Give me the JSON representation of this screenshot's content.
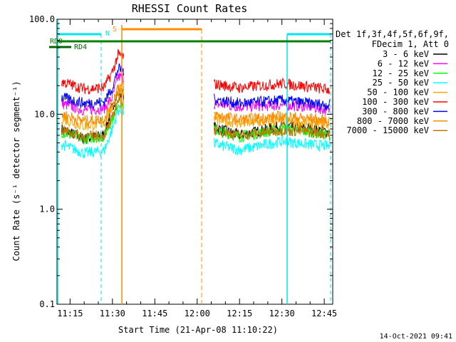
{
  "chart_data": {
    "type": "line",
    "title": "RHESSI Count Rates",
    "xlabel": "Start Time (21-Apr-08 11:10:22)",
    "ylabel": "Count Rate (s⁻¹ detector segment⁻¹)",
    "y_scale": "log",
    "ylim": [
      0.1,
      100.0
    ],
    "xlim": [
      "11:10:22",
      "12:48:00"
    ],
    "x_ticks": [
      "11:15",
      "11:30",
      "11:45",
      "12:00",
      "12:15",
      "12:30",
      "12:45"
    ],
    "y_ticks": [
      "0.1",
      "1.0",
      "10.0",
      "100.0"
    ],
    "legend_header": [
      "Det 1f,3f,4f,5f,6f,9f,",
      "FDecim 1, Att 0"
    ],
    "legend_position": "right",
    "series": [
      {
        "name": "3 - 6 keV",
        "color": "#000000",
        "x": [
          "11:12",
          "11:20",
          "11:27",
          "11:30",
          "11:32",
          "12:05",
          "12:15",
          "12:30",
          "12:40",
          "12:47"
        ],
        "values": [
          7.0,
          5.5,
          6.0,
          12.0,
          17.0,
          7.5,
          6.0,
          7.5,
          7.0,
          6.5
        ]
      },
      {
        "name": "6 - 12 keV",
        "color": "#ff00ff",
        "x": [
          "11:12",
          "11:20",
          "11:27",
          "11:30",
          "11:32",
          "12:05",
          "12:15",
          "12:30",
          "12:40",
          "12:47"
        ],
        "values": [
          13.0,
          11.0,
          11.5,
          15.0,
          25.0,
          13.0,
          12.0,
          12.5,
          12.0,
          11.0
        ]
      },
      {
        "name": "12 - 25 keV",
        "color": "#00ff00",
        "x": [
          "11:12",
          "11:20",
          "11:27",
          "11:30",
          "11:32",
          "12:05",
          "12:15",
          "12:30",
          "12:40",
          "12:47"
        ],
        "values": [
          6.5,
          5.5,
          5.8,
          9.0,
          13.0,
          7.0,
          5.8,
          7.0,
          6.5,
          6.0
        ]
      },
      {
        "name": "25 - 50 keV",
        "color": "#00ffff",
        "x": [
          "11:12",
          "11:20",
          "11:27",
          "11:30",
          "11:32",
          "12:05",
          "12:15",
          "12:30",
          "12:40",
          "12:47"
        ],
        "values": [
          4.8,
          3.9,
          4.1,
          7.0,
          11.0,
          5.0,
          4.2,
          5.2,
          4.8,
          4.6
        ]
      },
      {
        "name": "50 - 100 keV",
        "color": "#ffa500",
        "x": [
          "11:12",
          "11:20",
          "11:27",
          "11:30",
          "11:32",
          "12:05",
          "12:15",
          "12:30",
          "12:40",
          "12:47"
        ],
        "values": [
          9.0,
          7.5,
          8.0,
          12.0,
          18.0,
          9.0,
          8.0,
          8.5,
          8.0,
          7.8
        ]
      },
      {
        "name": "100 - 300 keV",
        "color": "#ff0000",
        "x": [
          "11:12",
          "11:20",
          "11:27",
          "11:30",
          "11:32",
          "12:05",
          "12:15",
          "12:30",
          "12:40",
          "12:47"
        ],
        "values": [
          22.0,
          18.5,
          19.0,
          28.0,
          42.0,
          21.0,
          19.0,
          21.0,
          19.5,
          18.0
        ]
      },
      {
        "name": "300 - 800 keV",
        "color": "#0000ff",
        "x": [
          "11:12",
          "11:20",
          "11:27",
          "11:30",
          "11:32",
          "12:05",
          "12:15",
          "12:30",
          "12:40",
          "12:47"
        ],
        "values": [
          15.0,
          13.0,
          13.5,
          19.0,
          30.0,
          14.5,
          13.0,
          14.0,
          13.0,
          12.5
        ]
      },
      {
        "name": "800 - 7000 keV",
        "color": "#ff8c00",
        "x": [
          "11:12",
          "11:20",
          "11:27",
          "11:30",
          "11:32",
          "12:05",
          "12:15",
          "12:30",
          "12:40",
          "12:47"
        ],
        "values": [
          10.0,
          8.5,
          9.0,
          13.0,
          20.0,
          10.0,
          8.8,
          9.5,
          9.0,
          8.5
        ]
      },
      {
        "name": "7000 - 15000 keV",
        "color": "#c07800",
        "x": [
          "11:12",
          "11:20",
          "11:27",
          "11:30",
          "11:32",
          "12:05",
          "12:15",
          "12:30",
          "12:40",
          "12:47"
        ],
        "values": [
          6.8,
          5.8,
          6.0,
          9.0,
          14.0,
          7.0,
          6.0,
          6.8,
          6.5,
          6.2
        ]
      }
    ],
    "annotations": {
      "night_label": "N",
      "saa_label": "S",
      "rd0_label": "RD0",
      "rd4_label": "RD4",
      "data_gap": [
        "11:34",
        "12:06"
      ]
    },
    "footer_date": "14-Oct-2021 09:41"
  }
}
